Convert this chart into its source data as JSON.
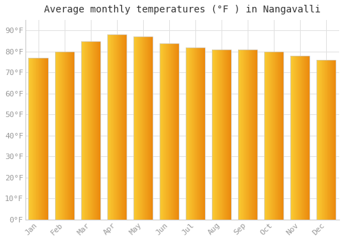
{
  "months": [
    "Jan",
    "Feb",
    "Mar",
    "Apr",
    "May",
    "Jun",
    "Jul",
    "Aug",
    "Sep",
    "Oct",
    "Nov",
    "Dec"
  ],
  "values": [
    77,
    80,
    85,
    88,
    87,
    84,
    82,
    81,
    81,
    80,
    78,
    76
  ],
  "bar_color_main": "#F5A623",
  "bar_color_gradient_top": "#F5C842",
  "bar_color_gradient_bottom": "#E8820C",
  "title": "Average monthly temperatures (°F ) in Nangavalli",
  "ylim": [
    0,
    95
  ],
  "yticks": [
    0,
    10,
    20,
    30,
    40,
    50,
    60,
    70,
    80,
    90
  ],
  "ytick_labels": [
    "0°F",
    "10°F",
    "20°F",
    "30°F",
    "40°F",
    "50°F",
    "60°F",
    "70°F",
    "80°F",
    "90°F"
  ],
  "background_color": "#FFFFFF",
  "plot_bg_color": "#FAFAFA",
  "grid_color": "#E0E0E0",
  "title_fontsize": 10,
  "tick_fontsize": 8,
  "tick_color": "#999999",
  "border_color": "#CCCCCC",
  "bar_edge_color": "#CCCCCC",
  "bar_width": 0.75
}
